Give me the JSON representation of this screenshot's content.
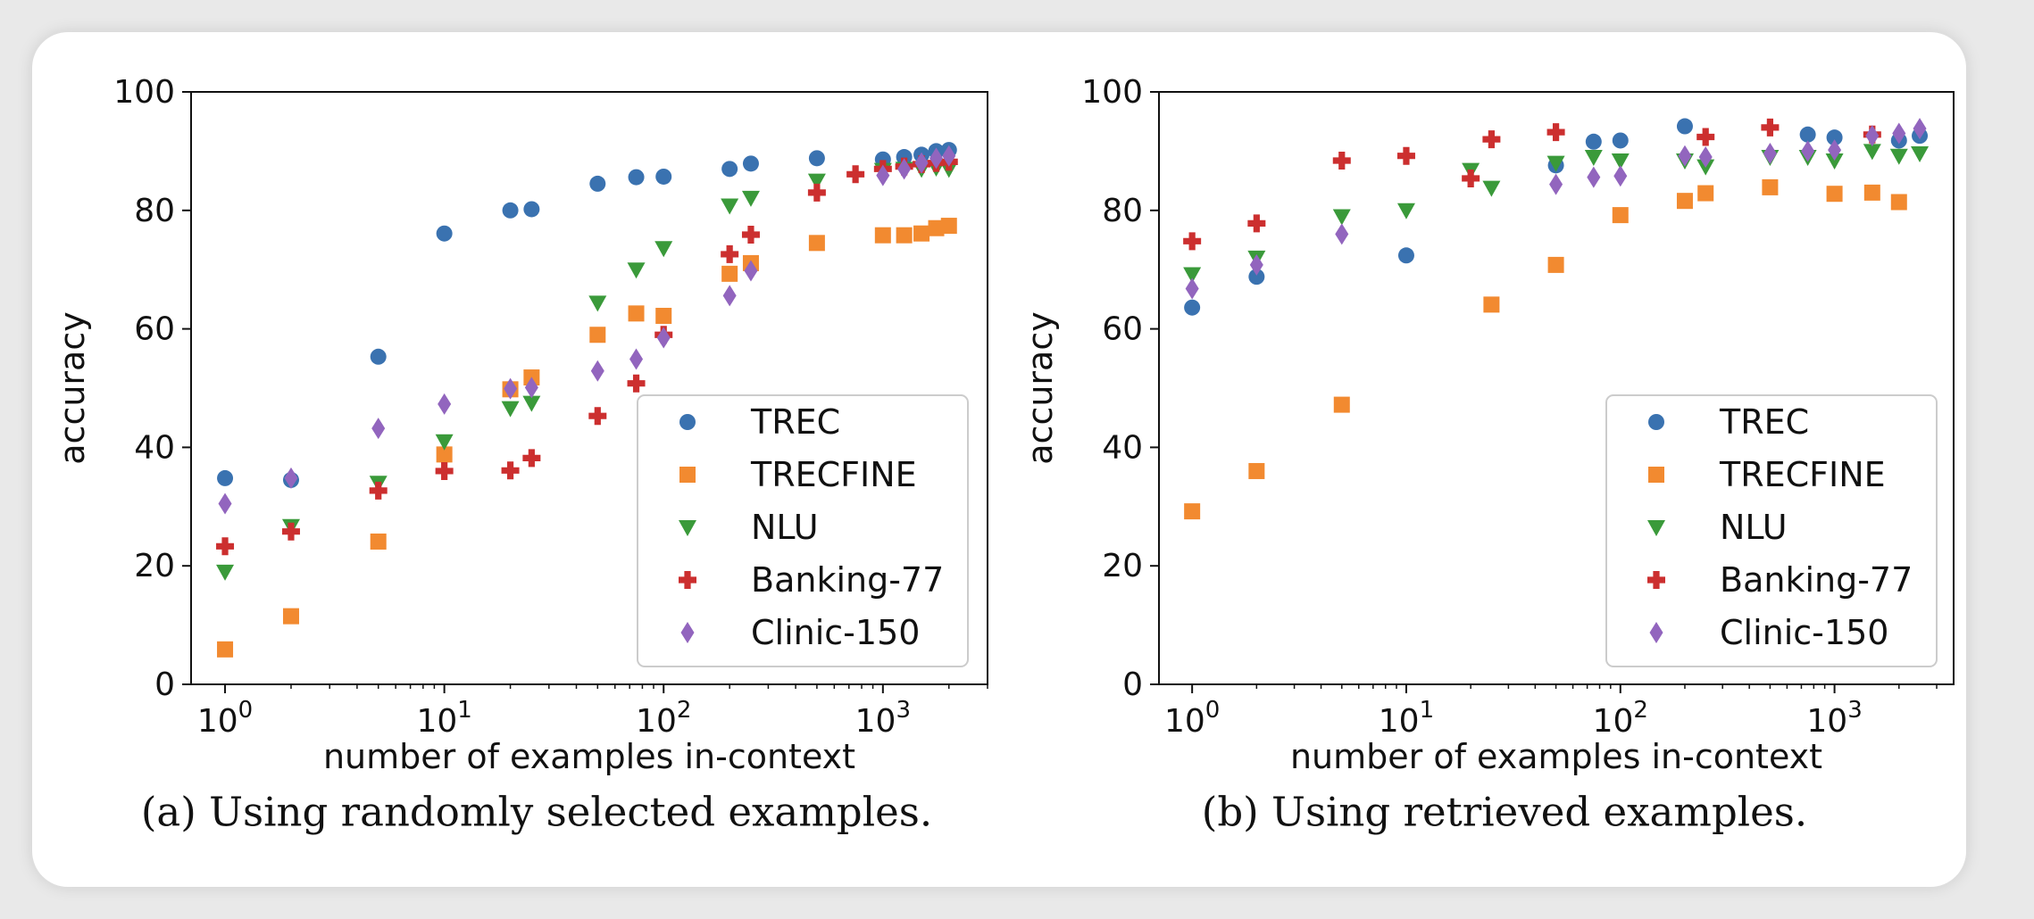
{
  "colors": {
    "TREC": "#3a72b0",
    "TRECFINE": "#f28a30",
    "NLU": "#3a9a3a",
    "Banking-77": "#cc2f2f",
    "Clinic-150": "#9265be"
  },
  "chart_data": [
    {
      "type": "scatter",
      "panel": "a",
      "caption": "(a) Using randomly selected examples.",
      "xlabel": "number of examples in-context",
      "ylabel": "accuracy",
      "xscale": "log",
      "xlim": [
        0.7,
        3000
      ],
      "ylim": [
        0,
        100
      ],
      "yticks": [
        "0",
        "20",
        "40",
        "60",
        "80",
        "100"
      ],
      "xticks": [
        {
          "base": "10",
          "exp": "0"
        },
        {
          "base": "10",
          "exp": "1"
        },
        {
          "base": "10",
          "exp": "2"
        },
        {
          "base": "10",
          "exp": "3"
        }
      ],
      "legend_position": "lower-right",
      "series": [
        {
          "name": "TREC",
          "marker": "circle",
          "x": [
            1,
            2,
            5,
            10,
            20,
            25,
            50,
            75,
            100,
            200,
            250,
            500,
            1000,
            1250,
            1500,
            1750,
            2000
          ],
          "y": [
            34.8,
            34.5,
            55.3,
            76.1,
            80.0,
            80.2,
            84.5,
            85.6,
            85.7,
            87.0,
            87.9,
            88.8,
            88.6,
            89.0,
            89.4,
            90.0,
            90.2
          ]
        },
        {
          "name": "TRECFINE",
          "marker": "square",
          "x": [
            1,
            2,
            5,
            10,
            20,
            25,
            50,
            75,
            100,
            200,
            250,
            500,
            1000,
            1250,
            1500,
            1750,
            2000
          ],
          "y": [
            5.9,
            11.5,
            24.1,
            38.8,
            49.8,
            51.8,
            59.0,
            62.6,
            62.2,
            69.3,
            71.1,
            74.5,
            75.8,
            75.8,
            76.1,
            77.0,
            77.4
          ]
        },
        {
          "name": "NLU",
          "marker": "triangle-down",
          "x": [
            1,
            2,
            5,
            10,
            20,
            25,
            50,
            75,
            100,
            200,
            250,
            500,
            1000,
            1250,
            1500,
            1750,
            2000
          ],
          "y": [
            19.0,
            26.7,
            34.0,
            41.0,
            46.6,
            47.5,
            64.4,
            70.0,
            73.6,
            80.8,
            82.1,
            85.0,
            86.8,
            87.0,
            87.0,
            87.2,
            87.0
          ]
        },
        {
          "name": "Banking-77",
          "marker": "plus",
          "x": [
            1,
            2,
            5,
            10,
            20,
            25,
            50,
            75,
            100,
            200,
            250,
            500,
            750,
            1000,
            1250,
            1500,
            1750,
            2000
          ],
          "y": [
            23.3,
            25.8,
            32.7,
            36.0,
            36.1,
            38.2,
            45.3,
            50.8,
            59.0,
            72.6,
            75.9,
            83.0,
            86.1,
            87.0,
            87.4,
            87.8,
            88.0,
            88.2
          ]
        },
        {
          "name": "Clinic-150",
          "marker": "diamond",
          "x": [
            1,
            2,
            5,
            10,
            20,
            25,
            50,
            75,
            100,
            200,
            250,
            1000,
            1250,
            1500,
            1750,
            2000
          ],
          "y": [
            30.5,
            34.8,
            43.2,
            47.3,
            49.9,
            50.1,
            52.9,
            54.9,
            58.5,
            65.6,
            69.8,
            85.9,
            87.0,
            88.0,
            88.8,
            89.2
          ]
        }
      ]
    },
    {
      "type": "scatter",
      "panel": "b",
      "caption": "(b) Using retrieved examples.",
      "xlabel": "number of examples in-context",
      "ylabel": "accuracy",
      "xscale": "log",
      "xlim": [
        0.7,
        3600
      ],
      "ylim": [
        0,
        100
      ],
      "yticks": [
        "0",
        "20",
        "40",
        "60",
        "80",
        "100"
      ],
      "xticks": [
        {
          "base": "10",
          "exp": "0"
        },
        {
          "base": "10",
          "exp": "1"
        },
        {
          "base": "10",
          "exp": "2"
        },
        {
          "base": "10",
          "exp": "3"
        }
      ],
      "legend_position": "lower-right",
      "series": [
        {
          "name": "TREC",
          "marker": "circle",
          "x": [
            1,
            2,
            10,
            50,
            75,
            100,
            200,
            750,
            1000,
            2000,
            2500
          ],
          "y": [
            63.6,
            68.8,
            72.4,
            87.6,
            91.6,
            91.8,
            94.2,
            92.8,
            92.3,
            91.8,
            92.6
          ]
        },
        {
          "name": "TRECFINE",
          "marker": "square",
          "x": [
            1,
            2,
            5,
            25,
            50,
            100,
            200,
            250,
            500,
            1000,
            1500,
            2000
          ],
          "y": [
            29.2,
            36.0,
            47.2,
            64.1,
            70.8,
            79.2,
            81.6,
            82.9,
            83.9,
            82.8,
            83.0,
            81.4
          ]
        },
        {
          "name": "NLU",
          "marker": "triangle-down",
          "x": [
            1,
            2,
            5,
            10,
            20,
            25,
            50,
            75,
            100,
            200,
            250,
            500,
            750,
            1000,
            1500,
            2000,
            2500
          ],
          "y": [
            69.2,
            72.0,
            79.0,
            80.0,
            86.8,
            83.8,
            88.0,
            89.0,
            88.4,
            88.4,
            87.4,
            89.0,
            89.0,
            88.4,
            90.0,
            89.2,
            89.6
          ]
        },
        {
          "name": "Banking-77",
          "marker": "plus",
          "x": [
            1,
            2,
            5,
            10,
            20,
            25,
            50,
            250,
            500,
            1500
          ],
          "y": [
            74.8,
            77.8,
            88.4,
            89.2,
            85.4,
            92.0,
            93.2,
            92.4,
            94.0,
            92.8
          ]
        },
        {
          "name": "Clinic-150",
          "marker": "diamond",
          "x": [
            1,
            2,
            5,
            50,
            75,
            100,
            200,
            250,
            500,
            750,
            1000,
            1500,
            2000,
            2500
          ],
          "y": [
            66.8,
            70.8,
            76.0,
            84.4,
            85.6,
            85.8,
            89.2,
            89.0,
            89.6,
            90.0,
            90.2,
            92.6,
            93.0,
            93.8
          ]
        }
      ]
    }
  ]
}
